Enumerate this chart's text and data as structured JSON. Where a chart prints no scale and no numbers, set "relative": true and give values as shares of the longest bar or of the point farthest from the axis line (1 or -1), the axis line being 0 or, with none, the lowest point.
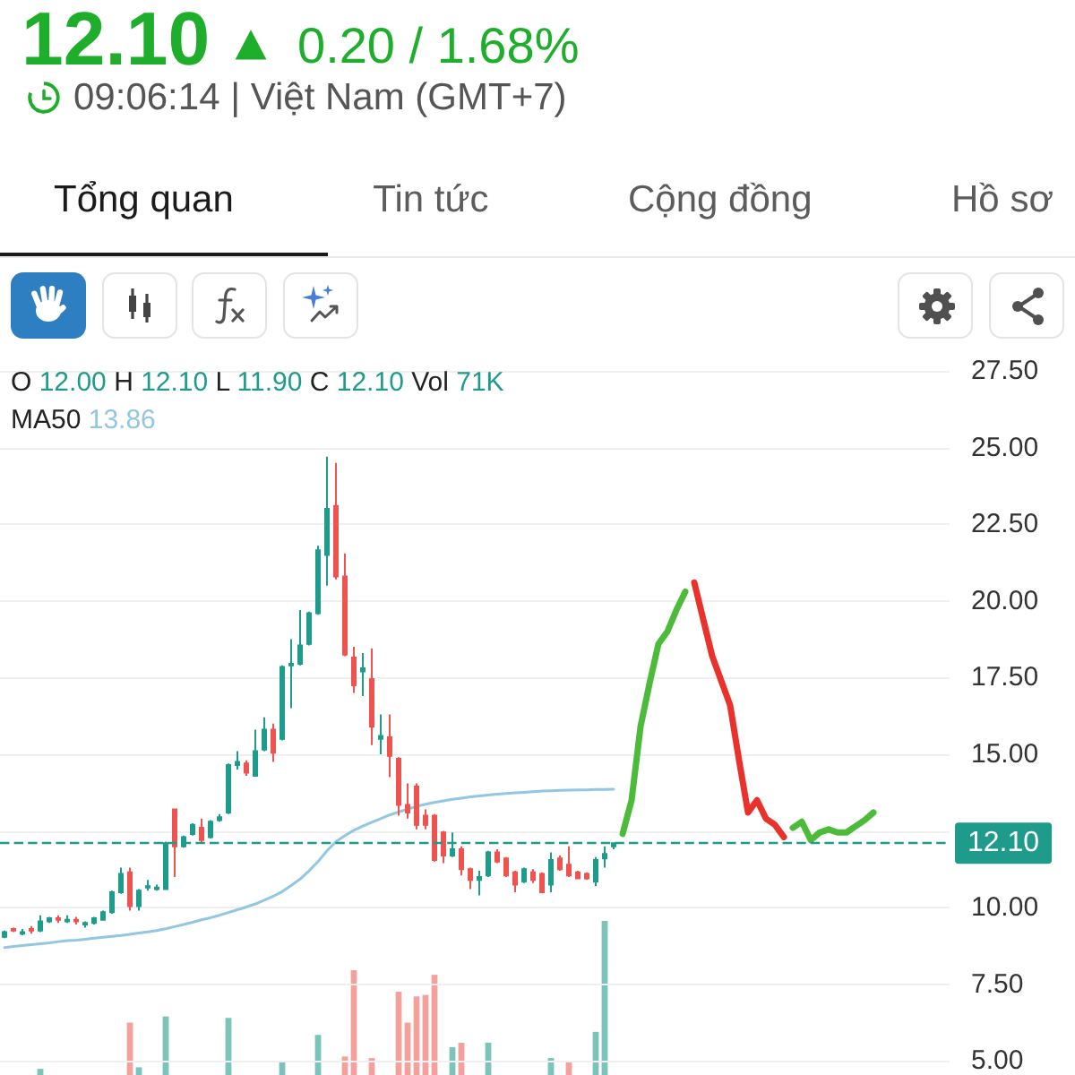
{
  "chart_data": [
    {
      "type": "candlestick",
      "title": "12.10",
      "subtitle": "0.20 / 1.68%",
      "annotations": [
        "09:06:14 | Việt Nam (GMT+7)",
        "Tổng quan",
        "Tin tức",
        "Cộng đồng",
        "Hồ sơ",
        "O 12.00 H 12.10 L 11.90 C 12.10 Vol 71K",
        "MA50 13.86"
      ],
      "categories": [
        null,
        null,
        null,
        null,
        null,
        null,
        null,
        null,
        null,
        null,
        null,
        null,
        null,
        null,
        null,
        null,
        null,
        null,
        null,
        null,
        null,
        null,
        null,
        null,
        null,
        null,
        null,
        null,
        null,
        null,
        null,
        null,
        null,
        null,
        null,
        null,
        null,
        null,
        null,
        null,
        null,
        null,
        null,
        null,
        null,
        null,
        null,
        null,
        null,
        null,
        null,
        null,
        null,
        null,
        null,
        null,
        null,
        null,
        null,
        null,
        null,
        null,
        null,
        null,
        null,
        null,
        null,
        null,
        null,
        null,
        null,
        null,
        null,
        null,
        null,
        null,
        null,
        null,
        null,
        null,
        null,
        null,
        null,
        null,
        null,
        null,
        null,
        null,
        null,
        null,
        null,
        null,
        null,
        null,
        null,
        null,
        null,
        null,
        null,
        null,
        null,
        null,
        null,
        null,
        null,
        null
      ],
      "ohlc": [
        [
          9.05,
          9.25,
          9.0,
          9.2
        ],
        [
          9.3,
          9.35,
          9.2,
          9.25
        ],
        [
          9.15,
          9.3,
          9.1,
          9.2
        ],
        [
          9.3,
          9.4,
          9.15,
          9.25
        ],
        [
          9.25,
          9.75,
          9.2,
          9.55
        ],
        [
          9.55,
          9.7,
          9.5,
          9.65
        ],
        [
          9.65,
          9.75,
          9.5,
          9.6
        ],
        [
          9.55,
          9.75,
          9.5,
          9.6
        ],
        [
          9.6,
          9.7,
          9.45,
          9.55
        ],
        [
          9.45,
          9.55,
          9.35,
          9.5
        ],
        [
          9.5,
          9.7,
          9.45,
          9.65
        ],
        [
          9.6,
          9.9,
          9.6,
          9.85
        ],
        [
          9.85,
          10.55,
          9.8,
          10.5
        ],
        [
          10.5,
          11.3,
          10.45,
          11.1
        ],
        [
          11.15,
          11.3,
          9.9,
          10.05
        ],
        [
          10.05,
          10.6,
          9.9,
          10.55
        ],
        [
          10.65,
          10.9,
          10.55,
          10.7
        ],
        [
          10.6,
          10.75,
          10.55,
          10.65
        ],
        [
          10.6,
          12.15,
          10.6,
          12.1
        ],
        [
          13.2,
          13.2,
          11.0,
          12.0
        ],
        [
          12.0,
          12.35,
          11.95,
          12.3
        ],
        [
          12.4,
          12.75,
          12.35,
          12.7
        ],
        [
          12.6,
          12.9,
          12.1,
          12.2
        ],
        [
          12.3,
          12.85,
          12.25,
          12.8
        ],
        [
          12.85,
          13.05,
          12.8,
          12.95
        ],
        [
          13.1,
          14.7,
          13.05,
          14.65
        ],
        [
          14.65,
          15.1,
          14.5,
          14.75
        ],
        [
          14.7,
          14.8,
          14.3,
          14.4
        ],
        [
          14.3,
          15.8,
          14.3,
          15.1
        ],
        [
          15.15,
          16.2,
          15.1,
          15.8
        ],
        [
          15.8,
          16.0,
          14.75,
          15.05
        ],
        [
          15.5,
          17.9,
          15.45,
          17.85
        ],
        [
          17.9,
          18.75,
          16.5,
          17.95
        ],
        [
          17.95,
          19.7,
          17.9,
          18.55
        ],
        [
          18.6,
          19.65,
          18.55,
          19.6
        ],
        [
          19.6,
          21.8,
          19.55,
          21.65
        ],
        [
          21.5,
          24.7,
          20.5,
          23.0
        ],
        [
          23.1,
          24.5,
          20.7,
          20.8
        ],
        [
          20.8,
          21.55,
          18.2,
          18.25
        ],
        [
          18.15,
          18.5,
          17.0,
          17.25
        ],
        [
          17.7,
          18.3,
          16.9,
          17.8
        ],
        [
          17.45,
          18.45,
          15.3,
          15.9
        ],
        [
          15.5,
          16.3,
          15.0,
          15.6
        ],
        [
          15.55,
          16.3,
          14.25,
          14.95
        ],
        [
          14.85,
          14.9,
          13.0,
          13.35
        ],
        [
          13.35,
          14.05,
          12.9,
          13.1
        ],
        [
          13.95,
          14.05,
          12.55,
          12.7
        ],
        [
          13.0,
          13.2,
          12.55,
          12.7
        ],
        [
          13.0,
          13.05,
          11.5,
          11.55
        ],
        [
          12.45,
          12.5,
          11.45,
          11.7
        ],
        [
          11.7,
          12.45,
          11.65,
          11.9
        ],
        [
          11.9,
          12.0,
          11.05,
          11.25
        ],
        [
          11.25,
          11.3,
          10.6,
          10.9
        ],
        [
          10.9,
          11.2,
          10.4,
          11.0
        ],
        [
          11.05,
          11.85,
          11.0,
          11.8
        ],
        [
          11.8,
          11.9,
          11.45,
          11.5
        ],
        [
          11.6,
          11.65,
          11.0,
          11.05
        ],
        [
          11.15,
          11.2,
          10.5,
          10.75
        ],
        [
          10.85,
          11.3,
          10.8,
          11.25
        ],
        [
          11.15,
          11.25,
          10.8,
          10.9
        ],
        [
          11.1,
          11.15,
          10.5,
          10.5
        ],
        [
          10.75,
          11.8,
          10.5,
          11.55
        ],
        [
          11.6,
          11.7,
          11.2,
          11.25
        ],
        [
          11.4,
          12.0,
          11.0,
          11.05
        ],
        [
          11.15,
          11.2,
          10.95,
          10.95
        ],
        [
          11.1,
          11.15,
          10.9,
          10.95
        ],
        [
          10.85,
          11.65,
          10.7,
          11.55
        ],
        [
          11.6,
          12.0,
          11.3,
          11.75
        ],
        [
          12.0,
          12.1,
          11.9,
          12.1
        ],
        null,
        null,
        null,
        null,
        null,
        null,
        null,
        null,
        null,
        null,
        null,
        null,
        null,
        null,
        null,
        null,
        null,
        null,
        null,
        null,
        null,
        null,
        null,
        null,
        null,
        null,
        null,
        null,
        null,
        null,
        null,
        null,
        null,
        null,
        null,
        null,
        null
      ],
      "colors": [
        "#1e9c8b",
        "#ee5350",
        "#1e9c8b",
        "#ee5350",
        "#1e9c8b",
        "#1e9c8b",
        "#ee5350",
        "#1e9c8b",
        "#ee5350",
        "#1e9c8b",
        "#1e9c8b",
        "#1e9c8b",
        "#1e9c8b",
        "#1e9c8b",
        "#ee5350",
        "#1e9c8b",
        "#1e9c8b",
        "#1e9c8b",
        "#1e9c8b",
        "#ee5350",
        "#1e9c8b",
        "#1e9c8b",
        "#ee5350",
        "#1e9c8b",
        "#1e9c8b",
        "#1e9c8b",
        "#1e9c8b",
        "#ee5350",
        "#1e9c8b",
        "#1e9c8b",
        "#ee5350",
        "#1e9c8b",
        "#1e9c8b",
        "#1e9c8b",
        "#1e9c8b",
        "#1e9c8b",
        "#1e9c8b",
        "#ee5350",
        "#ee5350",
        "#ee5350",
        "#1e9c8b",
        "#ee5350",
        "#1e9c8b",
        "#ee5350",
        "#ee5350",
        "#ee5350",
        "#ee5350",
        "#ee5350",
        "#ee5350",
        "#ee5350",
        "#1e9c8b",
        "#ee5350",
        "#ee5350",
        "#1e9c8b",
        "#1e9c8b",
        "#ee5350",
        "#ee5350",
        "#ee5350",
        "#1e9c8b",
        "#ee5350",
        "#ee5350",
        "#1e9c8b",
        "#ee5350",
        "#ee5350",
        "#ee5350",
        "#ee5350",
        "#1e9c8b",
        "#1e9c8b",
        "#1e9c8b",
        null,
        null,
        null,
        null,
        null,
        null,
        null,
        null,
        null,
        null,
        null,
        null,
        null,
        null,
        null,
        null,
        null,
        null,
        null,
        null,
        null,
        null,
        null,
        null,
        null,
        null,
        null,
        null,
        null,
        null,
        null,
        null,
        null,
        null,
        null,
        null,
        null
      ],
      "series": [
        {
          "type": "line",
          "color": "#93c6e2",
          "values": [
            8.7,
            8.73,
            8.76,
            8.79,
            8.82,
            8.85,
            8.89,
            8.92,
            8.94,
            8.97,
            9.0,
            9.03,
            9.06,
            9.09,
            9.13,
            9.17,
            9.21,
            9.25,
            9.31,
            9.38,
            9.45,
            9.52,
            9.6,
            9.67,
            9.75,
            9.84,
            9.93,
            10.02,
            10.12,
            10.24,
            10.37,
            10.52,
            10.72,
            10.93,
            11.2,
            11.5,
            11.85,
            12.15,
            12.35,
            12.52,
            12.66,
            12.78,
            12.9,
            13.02,
            13.12,
            13.21,
            13.3,
            13.37,
            13.43,
            13.48,
            13.53,
            13.57,
            13.61,
            13.64,
            13.67,
            13.7,
            13.72,
            13.74,
            13.76,
            13.78,
            13.8,
            13.81,
            13.82,
            13.83,
            13.84,
            13.84,
            13.85,
            13.85,
            13.86,
            null,
            null,
            null,
            null,
            null,
            null,
            null,
            null,
            null,
            null,
            null,
            null,
            null,
            null,
            null,
            null,
            null,
            null,
            null,
            null,
            null,
            null,
            null,
            null,
            null,
            null,
            null,
            null,
            null,
            null,
            null,
            null,
            null,
            null,
            null,
            null,
            null
          ]
        },
        {
          "type": "line",
          "color": "#4cbb3a",
          "values": [
            null,
            null,
            null,
            null,
            null,
            null,
            null,
            null,
            null,
            null,
            null,
            null,
            null,
            null,
            null,
            null,
            null,
            null,
            null,
            null,
            null,
            null,
            null,
            null,
            null,
            null,
            null,
            null,
            null,
            null,
            null,
            null,
            null,
            null,
            null,
            null,
            null,
            null,
            null,
            null,
            null,
            null,
            null,
            null,
            null,
            null,
            null,
            null,
            null,
            null,
            null,
            null,
            null,
            null,
            null,
            null,
            null,
            null,
            null,
            null,
            null,
            null,
            null,
            null,
            null,
            null,
            null,
            null,
            null,
            12.4,
            13.5,
            15.9,
            17.3,
            18.6,
            19.0,
            19.7,
            20.3,
            null,
            null,
            null,
            null,
            null,
            null,
            null,
            null,
            null,
            null,
            null,
            null,
            null,
            null,
            null,
            null,
            null,
            null,
            null,
            null,
            null,
            null,
            null,
            null,
            null,
            null,
            null,
            null,
            null
          ]
        },
        {
          "type": "line",
          "color": "#e8322b",
          "values": [
            null,
            null,
            null,
            null,
            null,
            null,
            null,
            null,
            null,
            null,
            null,
            null,
            null,
            null,
            null,
            null,
            null,
            null,
            null,
            null,
            null,
            null,
            null,
            null,
            null,
            null,
            null,
            null,
            null,
            null,
            null,
            null,
            null,
            null,
            null,
            null,
            null,
            null,
            null,
            null,
            null,
            null,
            null,
            null,
            null,
            null,
            null,
            null,
            null,
            null,
            null,
            null,
            null,
            null,
            null,
            null,
            null,
            null,
            null,
            null,
            null,
            null,
            null,
            null,
            null,
            null,
            null,
            null,
            null,
            null,
            null,
            null,
            null,
            null,
            null,
            null,
            null,
            20.6,
            19.4,
            18.2,
            17.4,
            16.6,
            14.8,
            13.1,
            13.5,
            12.9,
            12.7,
            12.3,
            null,
            null,
            null,
            null,
            null,
            null,
            null,
            null,
            null,
            null,
            null,
            null,
            null,
            null,
            null,
            null,
            null,
            null
          ]
        },
        {
          "type": "line",
          "color": "#4cbb3a",
          "values": [
            null,
            null,
            null,
            null,
            null,
            null,
            null,
            null,
            null,
            null,
            null,
            null,
            null,
            null,
            null,
            null,
            null,
            null,
            null,
            null,
            null,
            null,
            null,
            null,
            null,
            null,
            null,
            null,
            null,
            null,
            null,
            null,
            null,
            null,
            null,
            null,
            null,
            null,
            null,
            null,
            null,
            null,
            null,
            null,
            null,
            null,
            null,
            null,
            null,
            null,
            null,
            null,
            null,
            null,
            null,
            null,
            null,
            null,
            null,
            null,
            null,
            null,
            null,
            null,
            null,
            null,
            null,
            null,
            null,
            null,
            null,
            null,
            null,
            null,
            null,
            null,
            null,
            null,
            null,
            null,
            null,
            null,
            null,
            null,
            null,
            null,
            null,
            null,
            12.6,
            12.8,
            12.2,
            12.45,
            12.55,
            12.45,
            12.45,
            12.65,
            12.85,
            13.1,
            null,
            null,
            null,
            null,
            null,
            null,
            null,
            null
          ]
        }
      ],
      "ylim": [
        4.6,
        27.5
      ],
      "yticks": [
        {
          "value": 5,
          "label": "5.00"
        },
        {
          "value": 7.5,
          "label": "7.50"
        },
        {
          "value": 10,
          "label": "10.00"
        },
        {
          "value": 12.5,
          "label": null
        },
        {
          "value": 15,
          "label": "15.00"
        },
        {
          "value": 17.5,
          "label": "17.50"
        },
        {
          "value": 20,
          "label": "20.00"
        },
        {
          "value": 22.5,
          "label": "22.50"
        },
        {
          "value": 25,
          "label": "25.00"
        },
        {
          "value": 27.5,
          "label": "27.50"
        }
      ],
      "ref_lines": [
        {
          "axis": "y",
          "value": 12.1,
          "label": "12.10",
          "color": "#1e9b8a",
          "line_style": "dashed"
        }
      ],
      "grid": "y",
      "tick_labels": "y"
    },
    {
      "type": "bar",
      "relative": true,
      "tick_labels": false,
      "categories": [
        null,
        null,
        null,
        null,
        null,
        null,
        null,
        null,
        null,
        null,
        null,
        null,
        null,
        null,
        null,
        null,
        null,
        null,
        null,
        null,
        null,
        null,
        null,
        null,
        null,
        null,
        null,
        null,
        null,
        null,
        null,
        null,
        null,
        null,
        null,
        null,
        null,
        null,
        null,
        null,
        null,
        null,
        null,
        null,
        null,
        null,
        null,
        null,
        null,
        null,
        null,
        null,
        null,
        null,
        null,
        null,
        null,
        null,
        null,
        null,
        null,
        null,
        null,
        null,
        null,
        null,
        null,
        null,
        null,
        null,
        null,
        null,
        null,
        null,
        null,
        null,
        null,
        null,
        null,
        null,
        null,
        null,
        null,
        null,
        null,
        null,
        null,
        null,
        null,
        null,
        null,
        null,
        null,
        null,
        null,
        null,
        null,
        null,
        null,
        null,
        null,
        null,
        null,
        null,
        null,
        null
      ],
      "values": [
        null,
        null,
        null,
        null,
        0.04,
        null,
        null,
        null,
        null,
        null,
        null,
        null,
        null,
        null,
        0.34,
        0.05,
        null,
        null,
        0.38,
        null,
        null,
        null,
        null,
        null,
        null,
        0.37,
        null,
        null,
        null,
        null,
        null,
        0.09,
        null,
        null,
        null,
        0.26,
        null,
        null,
        0.12,
        0.68,
        null,
        0.11,
        null,
        null,
        0.54,
        0.34,
        0.51,
        0.52,
        0.65,
        null,
        0.18,
        0.21,
        null,
        null,
        0.21,
        null,
        null,
        null,
        null,
        null,
        null,
        0.11,
        null,
        0.09,
        null,
        null,
        0.28,
        1,
        null,
        null,
        null,
        null,
        null,
        null,
        null,
        null,
        null,
        null,
        null,
        null,
        null,
        null,
        null,
        null,
        null,
        null,
        null,
        null,
        null,
        null,
        null,
        null,
        null,
        null,
        null,
        null,
        null,
        null,
        null,
        null,
        null,
        null,
        null,
        null,
        null,
        null
      ],
      "colors": [
        null,
        null,
        null,
        null,
        "#7cc4ba",
        null,
        null,
        null,
        null,
        null,
        null,
        null,
        null,
        null,
        "#f4a19e",
        "#7cc4ba",
        null,
        null,
        "#7cc4ba",
        null,
        null,
        null,
        null,
        null,
        null,
        "#7cc4ba",
        null,
        null,
        null,
        null,
        null,
        "#7cc4ba",
        null,
        null,
        null,
        "#7cc4ba",
        null,
        null,
        "#f4a19e",
        "#f4a19e",
        null,
        "#f4a19e",
        null,
        null,
        "#f4a19e",
        "#f4a19e",
        "#f4a19e",
        "#f4a19e",
        "#f4a19e",
        null,
        "#7cc4ba",
        "#f4a19e",
        null,
        null,
        "#7cc4ba",
        null,
        null,
        null,
        null,
        null,
        null,
        "#7cc4ba",
        null,
        "#f4a19e",
        null,
        null,
        "#7cc4ba",
        "#7cc4ba",
        null,
        null,
        null,
        null,
        null,
        null,
        null,
        null,
        null,
        null,
        null,
        null,
        null,
        null,
        null,
        null,
        null,
        null,
        null,
        null,
        null,
        null,
        null,
        null,
        null,
        null,
        null,
        null,
        null,
        null,
        null,
        null,
        null,
        null,
        null,
        null,
        null,
        null
      ]
    }
  ]
}
